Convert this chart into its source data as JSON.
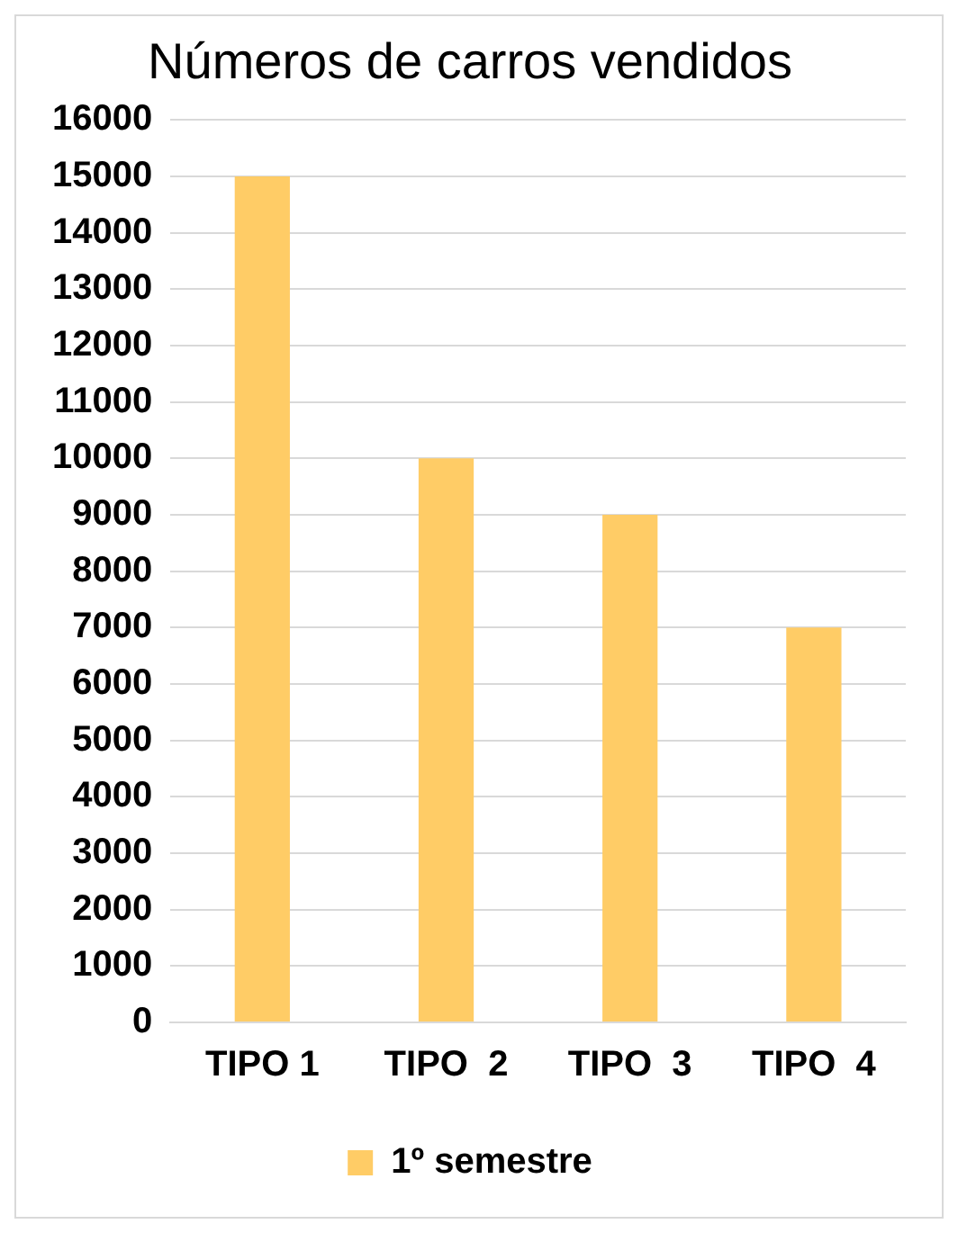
{
  "chart_data": {
    "type": "bar",
    "title": "Números de carros vendidos",
    "categories": [
      "TIPO 1",
      "TIPO  2",
      "TIPO  3",
      "TIPO  4"
    ],
    "series": [
      {
        "name": "1º semestre",
        "color": "#ffcc66",
        "values": [
          15000,
          10000,
          9000,
          7000
        ]
      }
    ],
    "ylim": [
      0,
      16000
    ],
    "yticks": [
      0,
      1000,
      2000,
      3000,
      4000,
      5000,
      6000,
      7000,
      8000,
      9000,
      10000,
      11000,
      12000,
      13000,
      14000,
      15000,
      16000
    ],
    "grid": "y",
    "legend": "bottom"
  }
}
